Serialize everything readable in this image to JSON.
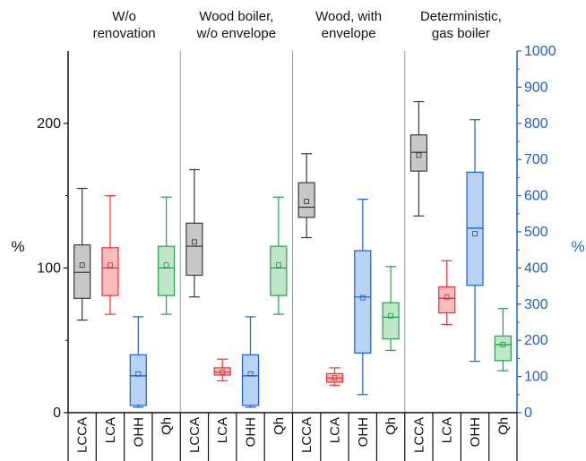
{
  "chart_data": {
    "type": "box",
    "groups": [
      {
        "title_lines": [
          "W/o",
          "renovation"
        ]
      },
      {
        "title_lines": [
          "Wood boiler,",
          "w/o envelope"
        ]
      },
      {
        "title_lines": [
          "Wood, with",
          "envelope"
        ]
      },
      {
        "title_lines": [
          "Deterministic,",
          "gas boiler"
        ]
      }
    ],
    "categories": [
      "LCCA",
      "LCA",
      "OHH",
      "Qh"
    ],
    "left_axis": {
      "label": "%",
      "ylim": [
        0,
        250
      ],
      "ticks": [
        0,
        100,
        200
      ]
    },
    "right_axis": {
      "label": "%",
      "ylim": [
        0,
        1000
      ],
      "ticks": [
        0,
        100,
        200,
        300,
        400,
        500,
        600,
        700,
        800,
        900,
        1000
      ]
    },
    "colors": {
      "LCCA": {
        "stroke": "#3a3a3a",
        "fill": "#c8c8c8"
      },
      "LCA": {
        "stroke": "#e8332f",
        "fill": "#f7bcbc"
      },
      "OHH": {
        "stroke": "#1f5fc8",
        "fill": "#b9d3f5"
      },
      "Qh": {
        "stroke": "#27a046",
        "fill": "#bfe6c8"
      }
    },
    "boxes": [
      [
        {
          "category": "LCCA",
          "axis": "left",
          "min": 64,
          "q1": 79,
          "median": 97,
          "q3": 116,
          "max": 155,
          "mean": 102
        },
        {
          "category": "LCA",
          "axis": "left",
          "min": 68,
          "q1": 81,
          "median": 100,
          "q3": 114,
          "max": 150,
          "mean": 102
        },
        {
          "category": "OHH",
          "axis": "right",
          "min": 15,
          "q1": 20,
          "median": 102,
          "q3": 160,
          "max": 265,
          "mean": 107
        },
        {
          "category": "Qh",
          "axis": "left",
          "min": 68,
          "q1": 81,
          "median": 100,
          "q3": 115,
          "max": 149,
          "mean": 102
        }
      ],
      [
        {
          "category": "LCCA",
          "axis": "left",
          "min": 80,
          "q1": 95,
          "median": 115,
          "q3": 131,
          "max": 168,
          "mean": 118
        },
        {
          "category": "LCA",
          "axis": "left",
          "min": 22,
          "q1": 26,
          "median": 28,
          "q3": 31,
          "max": 37,
          "mean": 28
        },
        {
          "category": "OHH",
          "axis": "right",
          "min": 15,
          "q1": 20,
          "median": 102,
          "q3": 160,
          "max": 265,
          "mean": 107
        },
        {
          "category": "Qh",
          "axis": "left",
          "min": 68,
          "q1": 81,
          "median": 100,
          "q3": 115,
          "max": 149,
          "mean": 102
        }
      ],
      [
        {
          "category": "LCCA",
          "axis": "left",
          "min": 121,
          "q1": 135,
          "median": 142,
          "q3": 159,
          "max": 179,
          "mean": 146
        },
        {
          "category": "LCA",
          "axis": "left",
          "min": 19,
          "q1": 21,
          "median": 24,
          "q3": 27,
          "max": 31,
          "mean": 24
        },
        {
          "category": "OHH",
          "axis": "right",
          "min": 50,
          "q1": 165,
          "median": 320,
          "q3": 448,
          "max": 590,
          "mean": 318
        },
        {
          "category": "Qh",
          "axis": "left",
          "min": 43,
          "q1": 51,
          "median": 66,
          "q3": 76,
          "max": 101,
          "mean": 67
        }
      ],
      [
        {
          "category": "LCCA",
          "axis": "left",
          "min": 136,
          "q1": 167,
          "median": 180,
          "q3": 192,
          "max": 215,
          "mean": 178
        },
        {
          "category": "LCA",
          "axis": "left",
          "min": 61,
          "q1": 69,
          "median": 79,
          "q3": 87,
          "max": 105,
          "mean": 80
        },
        {
          "category": "OHH",
          "axis": "right",
          "min": 142,
          "q1": 352,
          "median": 510,
          "q3": 665,
          "max": 810,
          "mean": 495
        },
        {
          "category": "Qh",
          "axis": "left",
          "min": 29,
          "q1": 36,
          "median": 47,
          "q3": 53,
          "max": 72,
          "mean": 47
        }
      ]
    ],
    "grid": false
  }
}
